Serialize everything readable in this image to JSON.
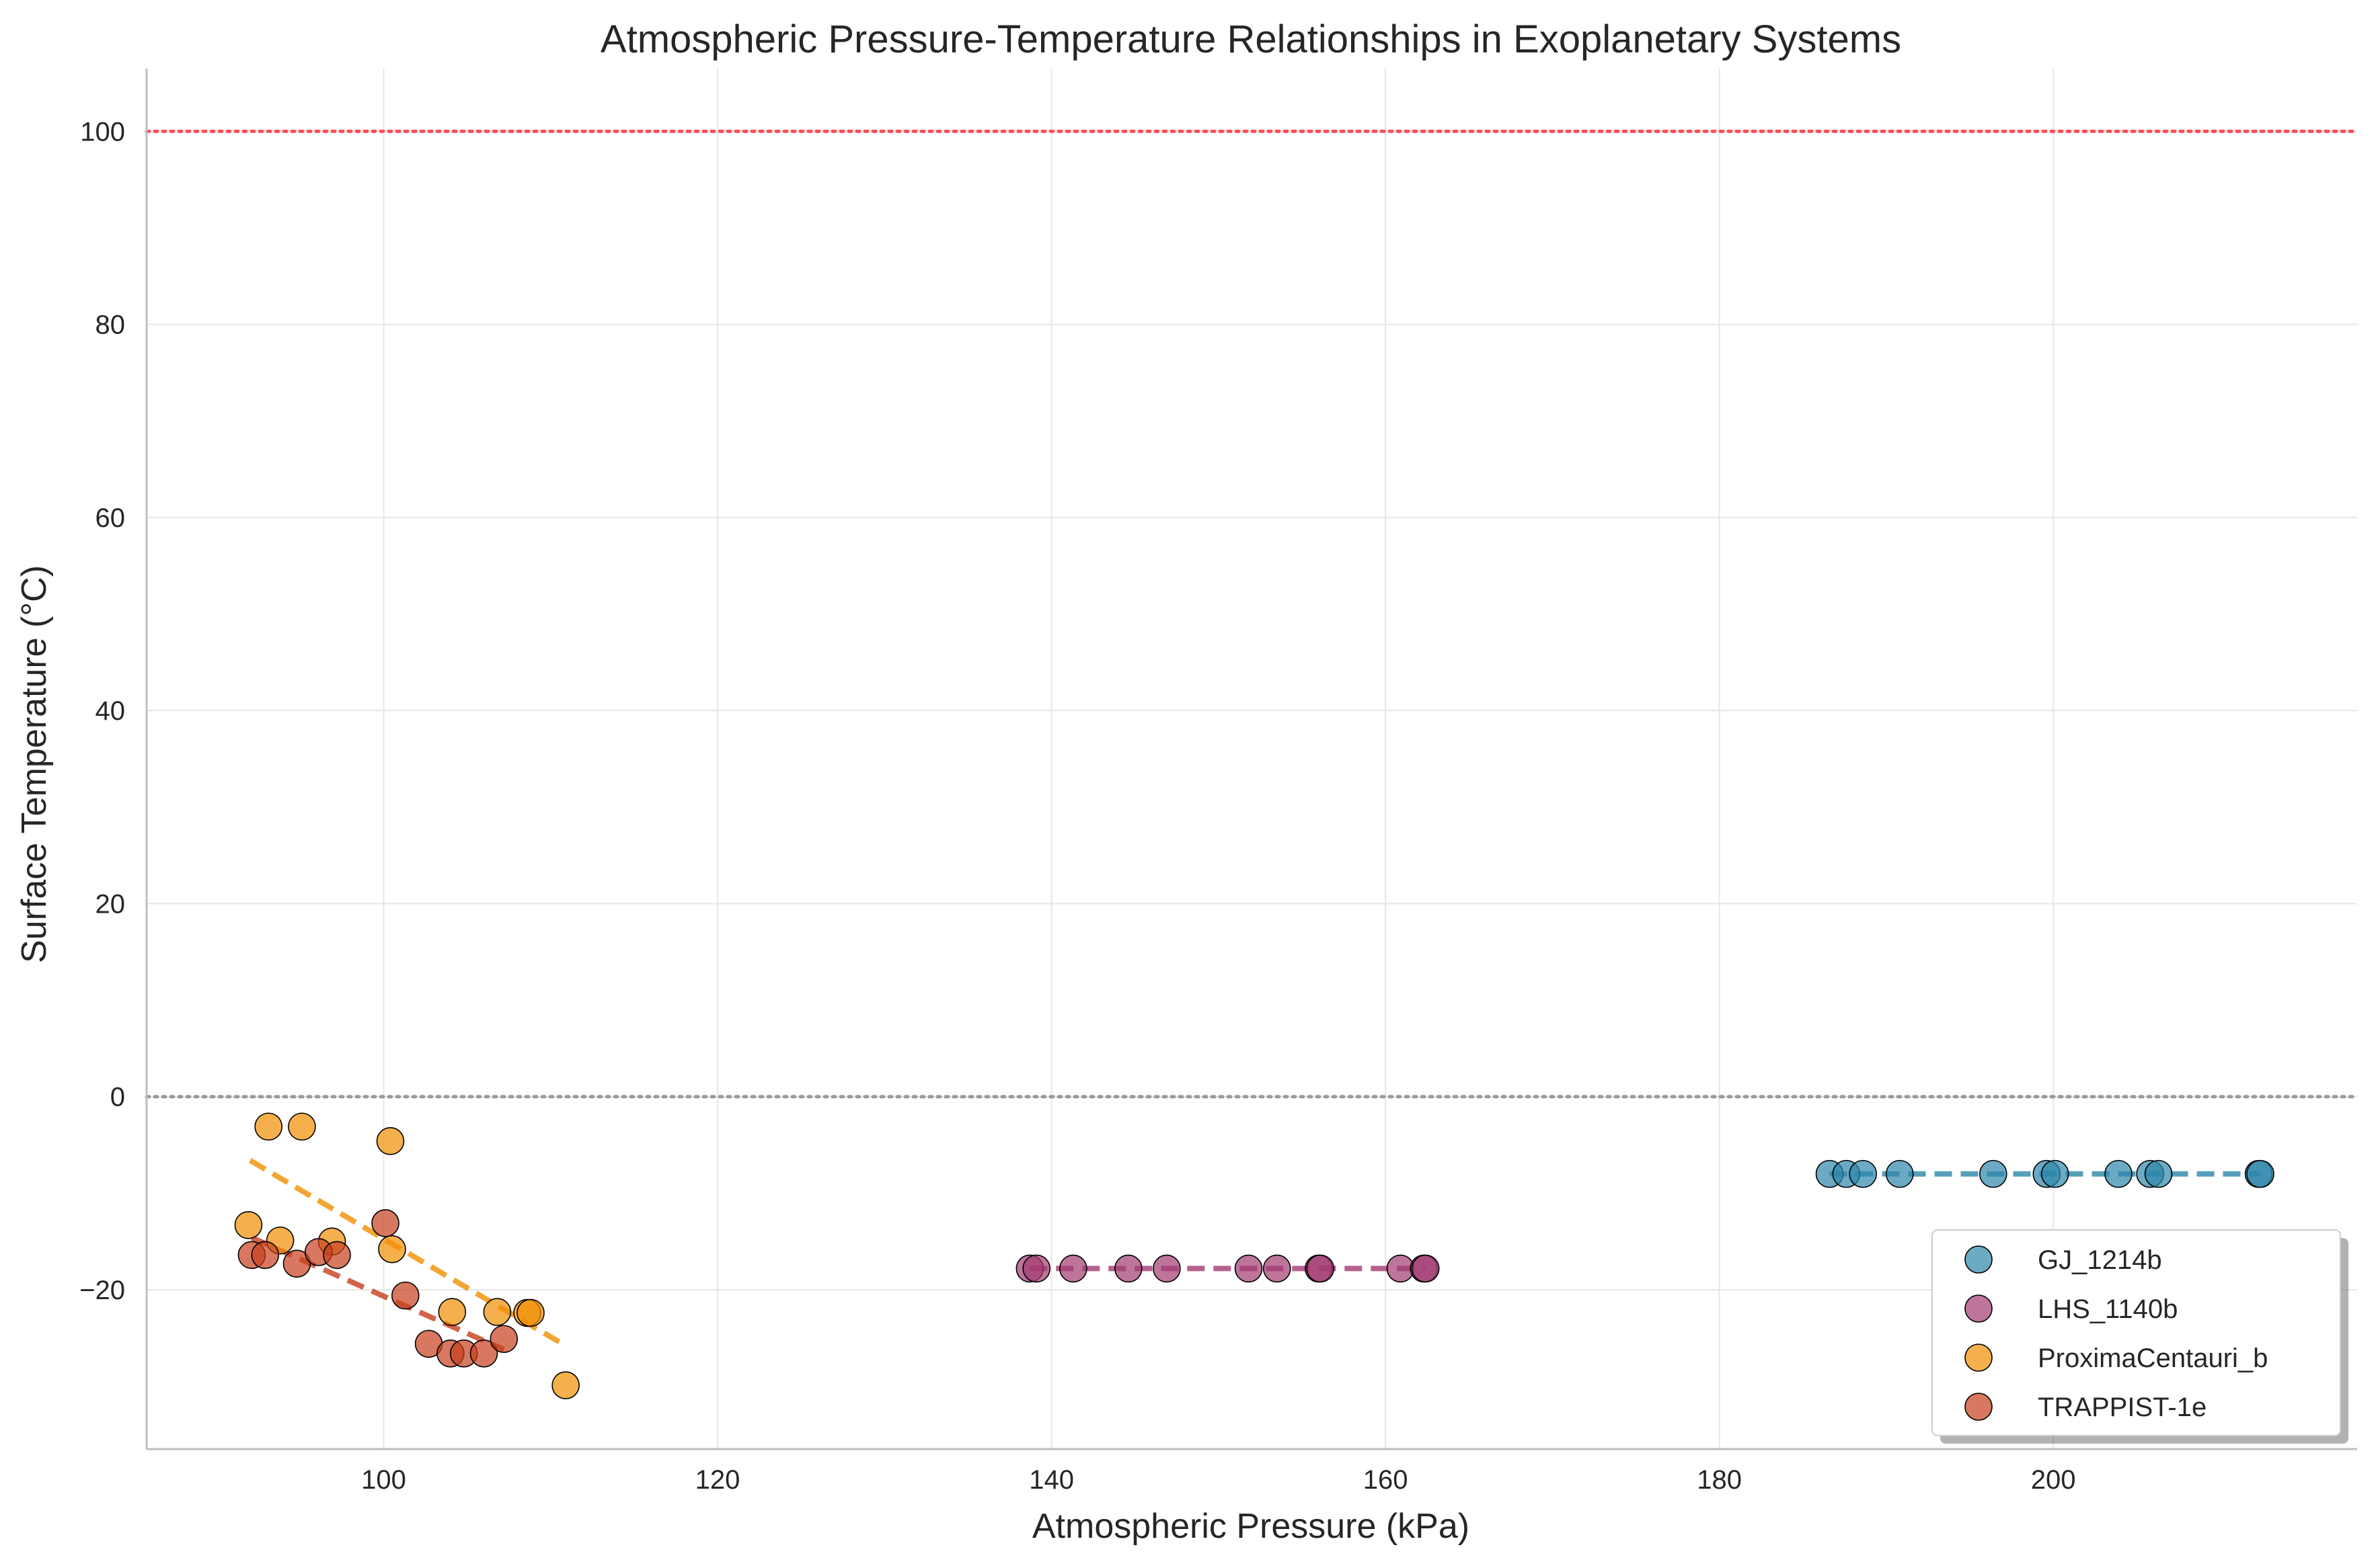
{
  "chart_data": {
    "type": "scatter",
    "title": "Atmospheric Pressure-Temperature Relationships in Exoplanetary Systems",
    "xlabel": "Atmospheric Pressure (kPa)",
    "ylabel": "Surface Temperature (°C)",
    "xlim": [
      85.8,
      218.2
    ],
    "ylim": [
      -36.5,
      106.5
    ],
    "xticks": [
      100,
      120,
      140,
      160,
      180,
      200
    ],
    "yticks": [
      -20,
      0,
      20,
      40,
      60,
      80,
      100
    ],
    "ytick_labels": [
      "−20",
      "0",
      "20",
      "40",
      "60",
      "80",
      "100"
    ],
    "grid": true,
    "legend_position": "lower-right",
    "reference_lines": [
      {
        "y": 100,
        "color": "#ff4d5a",
        "style": "dotted"
      },
      {
        "y": 0,
        "color": "#999999",
        "style": "dotted"
      }
    ],
    "series": [
      {
        "name": "GJ_1214b",
        "color": "#2e86ab",
        "x": [
          186.6,
          187.6,
          188.6,
          190.8,
          196.4,
          199.6,
          200.1,
          203.9,
          205.8,
          206.3,
          212.3,
          212.4
        ],
        "y": [
          -8.0,
          -8.0,
          -8.0,
          -8.0,
          -8.0,
          -8.0,
          -8.0,
          -8.0,
          -8.0,
          -8.0,
          -8.0,
          -8.0
        ],
        "trend": {
          "x": [
            186.6,
            212.4
          ],
          "y": [
            -8.0,
            -8.0
          ]
        }
      },
      {
        "name": "LHS_1140b",
        "color": "#a23b72",
        "x": [
          138.7,
          139.1,
          141.3,
          144.6,
          146.9,
          151.8,
          153.5,
          156.0,
          156.1,
          160.9,
          162.3,
          162.4
        ],
        "y": [
          -17.8,
          -17.8,
          -17.8,
          -17.8,
          -17.8,
          -17.8,
          -17.8,
          -17.8,
          -17.8,
          -17.8,
          -17.8,
          -17.8
        ],
        "trend": {
          "x": [
            138.7,
            162.4
          ],
          "y": [
            -17.8,
            -17.8
          ]
        }
      },
      {
        "name": "ProximaCentauri_b",
        "color": "#f18f01",
        "x": [
          91.9,
          93.1,
          93.8,
          95.1,
          96.9,
          100.4,
          100.5,
          104.1,
          106.8,
          108.6,
          108.8,
          110.9
        ],
        "y": [
          -13.3,
          -3.1,
          -14.9,
          -3.1,
          -15.0,
          -4.6,
          -15.8,
          -22.3,
          -22.3,
          -22.4,
          -22.4,
          -29.9
        ],
        "trend": {
          "x": [
            92.0,
            110.9
          ],
          "y": [
            -6.6,
            -25.8
          ]
        }
      },
      {
        "name": "TRAPPIST-1e",
        "color": "#c73e1d",
        "x": [
          92.1,
          92.9,
          94.8,
          96.1,
          97.2,
          100.1,
          101.3,
          102.7,
          104.0,
          104.8,
          106.0,
          107.2
        ],
        "y": [
          -16.4,
          -16.4,
          -17.3,
          -16.1,
          -16.4,
          -13.1,
          -20.6,
          -25.6,
          -26.6,
          -26.6,
          -26.6,
          -25.1
        ],
        "trend": {
          "x": [
            92.1,
            107.2
          ],
          "y": [
            -14.6,
            -26.2
          ]
        }
      }
    ]
  }
}
